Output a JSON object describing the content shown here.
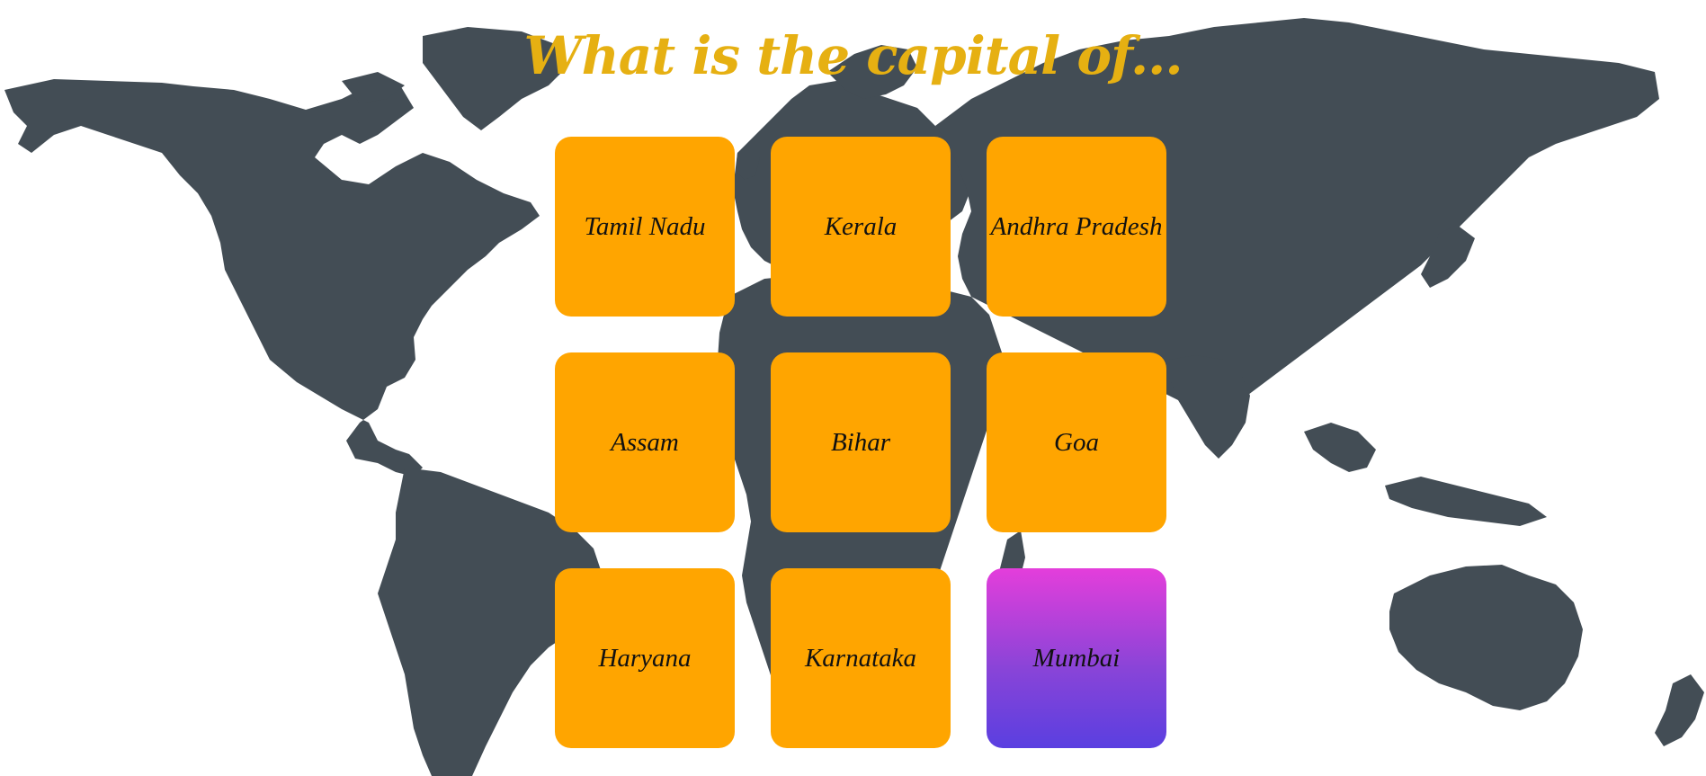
{
  "game": {
    "title": "What is the capital of...",
    "cards": [
      {
        "label": "Tamil Nadu",
        "selected": false
      },
      {
        "label": "Kerala",
        "selected": false
      },
      {
        "label": "Andhra Pradesh",
        "selected": false
      },
      {
        "label": "Assam",
        "selected": false
      },
      {
        "label": "Bihar",
        "selected": false
      },
      {
        "label": "Goa",
        "selected": false
      },
      {
        "label": "Haryana",
        "selected": false
      },
      {
        "label": "Karnataka",
        "selected": false
      },
      {
        "label": "Mumbai",
        "selected": true
      }
    ]
  },
  "colors": {
    "title": "#e6b012",
    "card": "#ffa500",
    "selected_card_top": "#e43edb",
    "selected_card_bottom": "#5a3fe0",
    "map": "#434d55",
    "background": "#ffffff"
  }
}
